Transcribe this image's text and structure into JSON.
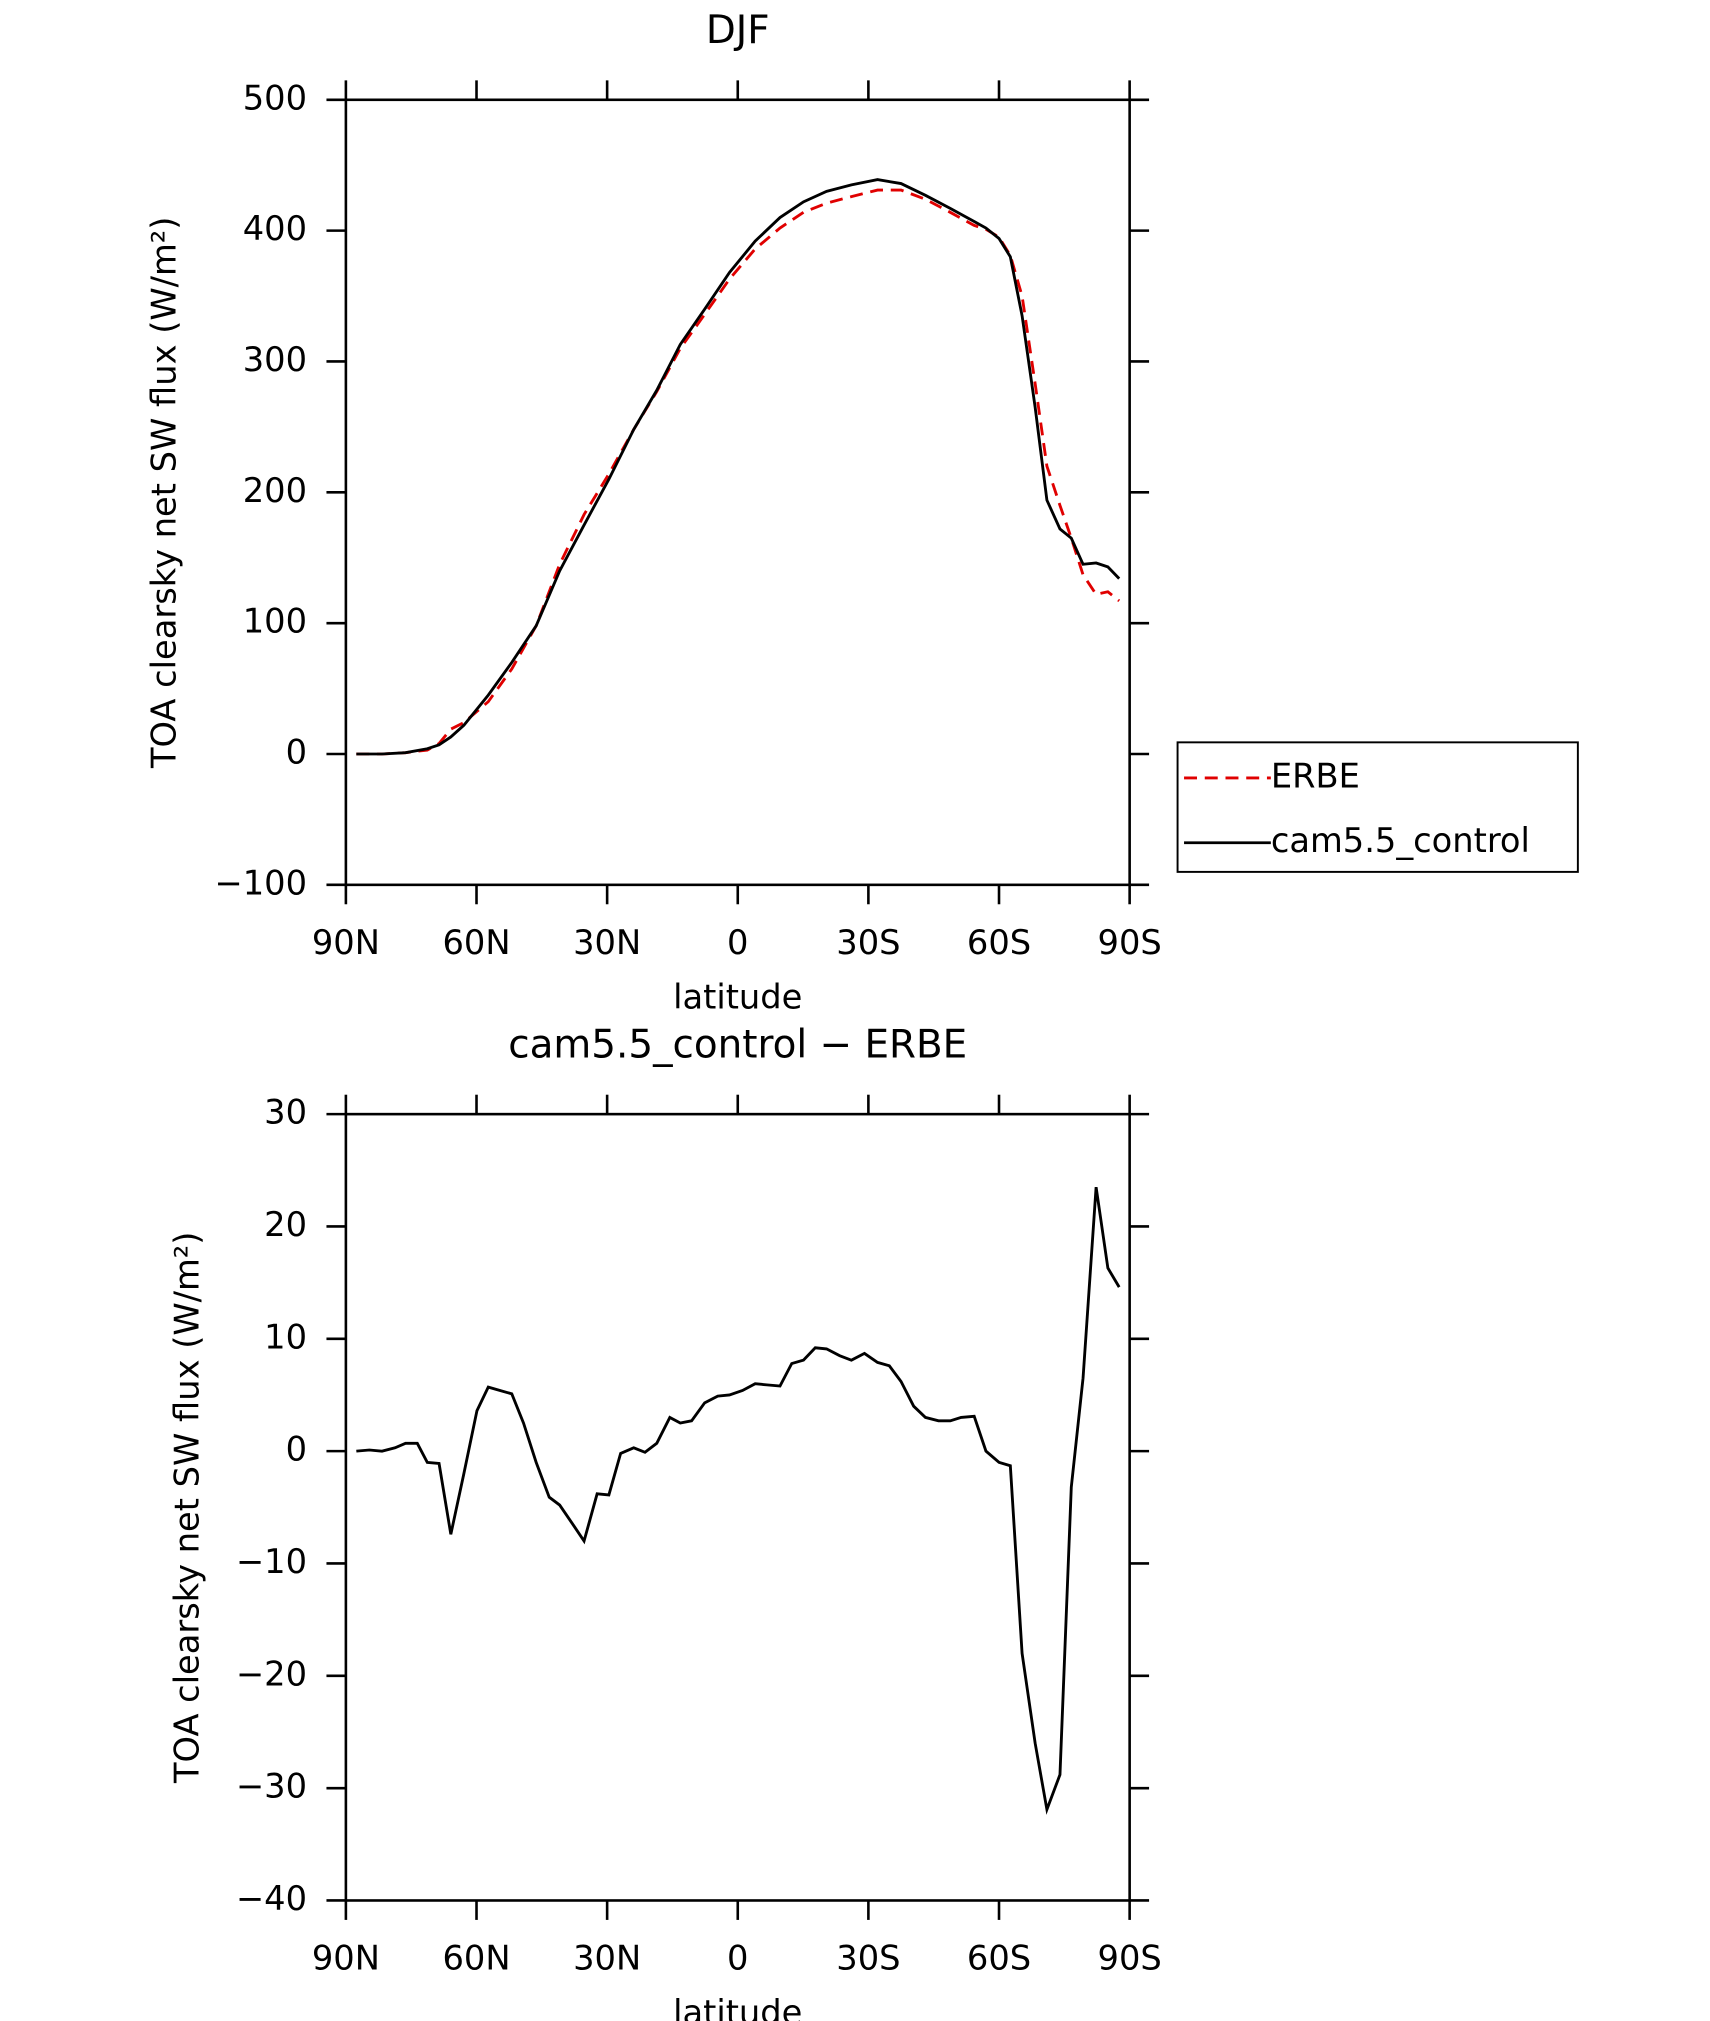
{
  "chart_data": [
    {
      "type": "line",
      "title": "DJF",
      "xlabel": "latitude",
      "ylabel": "TOA clearsky net SW flux (W/m²)",
      "x": [
        87.6,
        81.7,
        76.3,
        71.3,
        68.6,
        65.9,
        62.9,
        57.3,
        51.9,
        46.3,
        40.9,
        35.3,
        29.6,
        23.9,
        18.6,
        13.2,
        7.6,
        1.9,
        -4.0,
        -9.7,
        -15.1,
        -20.4,
        -26.1,
        -32.1,
        -37.5,
        -43.1,
        -48.8,
        -54.3,
        -57.0,
        -60.0,
        -62.6,
        -65.3,
        -68.3,
        -71.0,
        -74.0,
        -76.6,
        -79.3,
        -82.3,
        -85.0,
        -87.6
      ],
      "series": [
        {
          "name": "ERBE",
          "color": "#e00000",
          "dashed": true,
          "values": [
            0,
            0,
            1,
            3,
            8,
            19,
            24,
            40,
            65,
            98,
            145,
            183,
            214,
            248,
            277,
            310,
            336,
            363,
            386,
            402,
            414,
            421,
            426,
            431,
            431,
            424,
            414,
            404,
            401,
            395,
            381,
            350,
            283,
            220,
            190,
            165,
            137,
            122,
            124,
            117
          ]
        },
        {
          "name": "cam5.5_control",
          "color": "#000000",
          "dashed": false,
          "values": [
            0,
            0,
            1,
            4,
            7,
            13,
            22,
            45,
            70,
            98,
            140,
            175,
            210,
            248,
            278,
            313,
            340,
            368,
            392,
            410,
            422,
            430,
            435,
            439,
            436,
            427,
            417,
            407,
            402,
            394,
            380,
            335,
            265,
            194,
            172,
            165,
            145,
            146,
            143,
            134
          ]
        }
      ],
      "xlim": [
        90,
        -90
      ],
      "xticks": [
        {
          "value": 90,
          "label": "90N"
        },
        {
          "value": 60,
          "label": "60N"
        },
        {
          "value": 30,
          "label": "30N"
        },
        0,
        {
          "value": -30,
          "label": "30S"
        },
        {
          "value": -60,
          "label": "60S"
        },
        {
          "value": -90,
          "label": "90S"
        }
      ],
      "ylim": [
        -100,
        500
      ],
      "yticks": [
        {
          "value": -100,
          "label": "−100"
        },
        0,
        100,
        200,
        300,
        400,
        500
      ],
      "legend": "outside-right"
    },
    {
      "type": "line",
      "title": "cam5.5_control − ERBE",
      "xlabel": "latitude",
      "ylabel": "TOA clearsky net SW flux (W/m²)",
      "x": [
        87.6,
        84.6,
        81.7,
        78.7,
        76.3,
        73.6,
        71.3,
        68.6,
        65.9,
        62.9,
        59.9,
        57.3,
        54.6,
        51.9,
        49.2,
        46.3,
        43.3,
        40.9,
        37.9,
        35.3,
        32.3,
        29.6,
        26.9,
        23.9,
        21.3,
        18.6,
        15.6,
        13.2,
        10.6,
        7.6,
        4.6,
        1.9,
        -1.1,
        -4.0,
        -6.7,
        -9.7,
        -12.4,
        -15.1,
        -17.8,
        -20.4,
        -23.4,
        -26.1,
        -29.1,
        -32.1,
        -34.8,
        -37.5,
        -40.4,
        -43.1,
        -46.1,
        -48.8,
        -51.3,
        -54.3,
        -57.0,
        -60.0,
        -62.6,
        -65.3,
        -68.3,
        -71.0,
        -74.0,
        -76.6,
        -79.3,
        -82.3,
        -85.0,
        -87.6
      ],
      "values": [
        0,
        0.1,
        0,
        0.3,
        0.7,
        0.7,
        -1,
        -1.1,
        -7.4,
        -2,
        3.6,
        5.7,
        5.4,
        5.1,
        2.5,
        -1,
        -4.1,
        -4.8,
        -6.5,
        -8,
        -3.8,
        -3.9,
        -0.2,
        0.3,
        -0.1,
        0.7,
        3,
        2.5,
        2.7,
        4.3,
        4.9,
        5,
        5.4,
        6,
        5.9,
        5.8,
        7.8,
        8.1,
        9.2,
        9.1,
        8.5,
        8.1,
        8.7,
        7.9,
        7.6,
        6.2,
        4,
        3,
        2.7,
        2.7,
        3,
        3.1,
        0,
        -1,
        -1.3,
        -18,
        -26,
        -31.9,
        -28.8,
        -3.2,
        6.5,
        23.5,
        16.3,
        14.6
      ],
      "color": "#000000",
      "xlim": [
        90,
        -90
      ],
      "xticks": [
        {
          "value": 90,
          "label": "90N"
        },
        {
          "value": 60,
          "label": "60N"
        },
        {
          "value": 30,
          "label": "30N"
        },
        0,
        {
          "value": -30,
          "label": "30S"
        },
        {
          "value": -60,
          "label": "60S"
        },
        {
          "value": -90,
          "label": "90S"
        }
      ],
      "ylim": [
        -40,
        30
      ],
      "yticks": [
        {
          "value": -40,
          "label": "−40"
        },
        {
          "value": -30,
          "label": "−30"
        },
        {
          "value": -20,
          "label": "−20"
        },
        {
          "value": -10,
          "label": "−10"
        },
        0,
        10,
        20,
        30
      ]
    }
  ]
}
